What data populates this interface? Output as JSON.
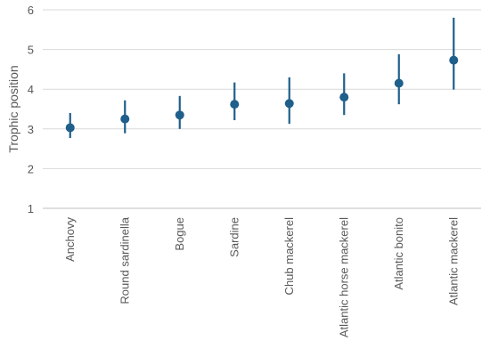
{
  "chart_data": {
    "type": "scatter",
    "ylabel": "Trophic position",
    "xlabel": "",
    "ylim": [
      1,
      6
    ],
    "yticks": [
      1,
      2,
      3,
      4,
      5,
      6
    ],
    "grid": true,
    "colors": {
      "marker": "#1f5f8b",
      "grid": "#d9d9d9",
      "axis": "#bfbfbf",
      "text": "#595959"
    },
    "categories": [
      "Anchovy",
      "Round sardinella",
      "Bogue",
      "Sardine",
      "Chub mackerel",
      "Atlantic horse mackerel",
      "Atlantic bonito",
      "Atlantic mackerel"
    ],
    "values": [
      3.03,
      3.25,
      3.35,
      3.62,
      3.64,
      3.8,
      4.15,
      4.73
    ],
    "lower": [
      2.77,
      2.89,
      3.0,
      3.22,
      3.13,
      3.35,
      3.62,
      3.99
    ],
    "upper": [
      3.4,
      3.72,
      3.83,
      4.17,
      4.3,
      4.4,
      4.88,
      5.8
    ]
  }
}
